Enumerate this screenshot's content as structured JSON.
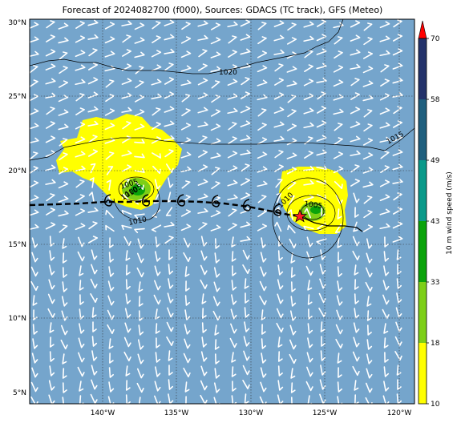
{
  "title": "Forecast of 2024082700 (f000), Sources: GDACS (TC track), GFS (Meteo)",
  "lat_ticks": [
    "30°N",
    "25°N",
    "20°N",
    "15°N",
    "10°N",
    "5°N"
  ],
  "lon_ticks": [
    "140°W",
    "135°W",
    "130°W",
    "125°W",
    "120°W"
  ],
  "colorbar": {
    "label": "10 m wind speed (m/s)",
    "ticks": [
      "10",
      "18",
      "33",
      "43",
      "49",
      "58",
      "70"
    ],
    "colors": [
      "#ffff00",
      "#7dcf17",
      "#0aa30a",
      "#0a9a8a",
      "#1f5f7e",
      "#23326b",
      "#ff0000"
    ]
  },
  "isobar_labels": [
    "1020",
    "1015",
    "1010",
    "1005",
    "1010",
    "1005",
    "1010",
    "1005"
  ],
  "colors": {
    "ocean": "#75a5cc",
    "track": "#000000",
    "current_position_star": "#ff2020"
  },
  "icons": {
    "storm_symbol": "tropical-cyclone-symbol",
    "current_position": "star-icon",
    "wind_vector": "wind-barb"
  }
}
